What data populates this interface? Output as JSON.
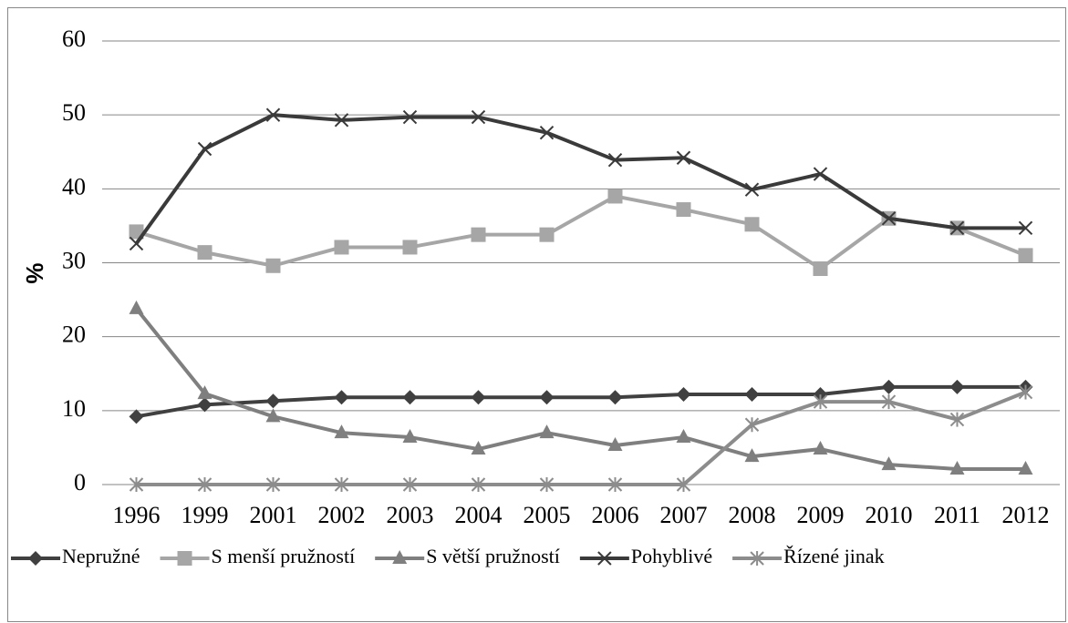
{
  "chart_data": {
    "type": "line",
    "y_label": "%",
    "categories": [
      "1996",
      "1999",
      "2001",
      "2002",
      "2003",
      "2004",
      "2005",
      "2006",
      "2007",
      "2008",
      "2009",
      "2010",
      "2011",
      "2012"
    ],
    "ylim": [
      0,
      60
    ],
    "yticks": [
      0,
      10,
      20,
      30,
      40,
      50,
      60
    ],
    "grid": true,
    "legend": "bottom",
    "series": [
      {
        "name": "Nepružné",
        "color": "#404040",
        "marker": "diamond",
        "values": [
          9.2,
          10.8,
          11.3,
          11.8,
          11.8,
          11.8,
          11.8,
          11.8,
          12.2,
          12.2,
          12.2,
          13.2,
          13.2,
          13.2
        ]
      },
      {
        "name": "S menší pružností",
        "color": "#a6a6a6",
        "marker": "square",
        "values": [
          34.2,
          31.4,
          29.6,
          32.1,
          32.1,
          33.8,
          33.8,
          39.0,
          37.2,
          35.2,
          29.2,
          36.0,
          34.7,
          31.0
        ]
      },
      {
        "name": "S větší pružností",
        "color": "#7f7f7f",
        "marker": "triangle",
        "values": [
          23.8,
          12.3,
          9.2,
          7.0,
          6.4,
          4.8,
          7.0,
          5.3,
          6.4,
          3.8,
          4.8,
          2.7,
          2.1,
          2.1
        ]
      },
      {
        "name": "Pohyblivé",
        "color": "#3a3a3a",
        "marker": "x",
        "values": [
          32.6,
          45.4,
          50.0,
          49.3,
          49.7,
          49.7,
          47.6,
          43.9,
          44.2,
          39.9,
          42.0,
          36.0,
          34.7,
          34.7
        ]
      },
      {
        "name": "Řízené jinak",
        "color": "#8c8c8c",
        "marker": "star",
        "values": [
          0,
          0,
          0,
          0,
          0,
          0,
          0,
          0,
          0,
          8.1,
          11.2,
          11.2,
          8.8,
          12.5
        ]
      }
    ]
  }
}
